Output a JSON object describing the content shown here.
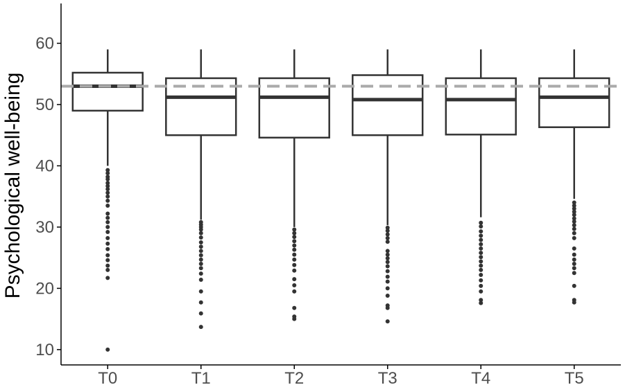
{
  "chart_data": {
    "type": "box",
    "xlabel": "",
    "ylabel": "Psychological well-being",
    "ylim": [
      7.5,
      66.5
    ],
    "yticks": [
      10,
      20,
      30,
      40,
      50,
      60
    ],
    "grid": false,
    "reference_line": {
      "y": 53,
      "style": "dashed",
      "color": "#aaaaaa"
    },
    "categories": [
      "T0",
      "T1",
      "T2",
      "T3",
      "T4",
      "T5"
    ],
    "boxes": [
      {
        "category": "T0",
        "whisker_low": 40,
        "q1": 49,
        "median": 53,
        "q3": 55.2,
        "whisker_high": 59,
        "outliers": [
          39.3,
          38.8,
          38.2,
          37.8,
          37.2,
          36.7,
          36.2,
          35.6,
          35.0,
          34.3,
          33.5,
          32.2,
          31.5,
          30.8,
          30.0,
          29.2,
          28.2,
          27.3,
          26.4,
          25.4,
          24.6,
          23.7,
          23.0,
          21.7,
          10.0
        ]
      },
      {
        "category": "T1",
        "whisker_low": 31.2,
        "q1": 45,
        "median": 51.2,
        "q3": 54.3,
        "whisker_high": 59,
        "outliers": [
          30.8,
          30.4,
          30.0,
          29.6,
          29.0,
          28.3,
          27.5,
          26.8,
          26.1,
          25.4,
          24.7,
          24.0,
          23.3,
          22.4,
          21.4,
          19.5,
          17.7,
          15.9,
          13.7
        ]
      },
      {
        "category": "T2",
        "whisker_low": 30.0,
        "q1": 44.6,
        "median": 51.2,
        "q3": 54.3,
        "whisker_high": 59,
        "outliers": [
          29.6,
          29.0,
          28.4,
          27.7,
          27.0,
          26.3,
          25.5,
          24.7,
          23.8,
          22.9,
          21.5,
          20.5,
          19.5,
          16.8,
          15.4,
          15.0
        ]
      },
      {
        "category": "T3",
        "whisker_low": 30.3,
        "q1": 45,
        "median": 50.8,
        "q3": 54.8,
        "whisker_high": 59,
        "outliers": [
          29.9,
          29.4,
          28.8,
          28.2,
          27.6,
          26.1,
          25.5,
          24.9,
          24.3,
          23.6,
          22.8,
          21.9,
          21.1,
          20.0,
          18.8,
          17.2,
          16.8,
          14.6
        ]
      },
      {
        "category": "T4",
        "whisker_low": 31.6,
        "q1": 45.1,
        "median": 50.8,
        "q3": 54.3,
        "whisker_high": 59,
        "outliers": [
          30.7,
          30.1,
          29.3,
          28.6,
          27.9,
          27.2,
          26.5,
          25.8,
          25.1,
          24.4,
          23.7,
          23.0,
          22.2,
          21.3,
          20.4,
          19.5,
          18.1,
          17.6
        ]
      },
      {
        "category": "T5",
        "whisker_low": 34.6,
        "q1": 46.3,
        "median": 51.2,
        "q3": 54.3,
        "whisker_high": 59,
        "outliers": [
          34.0,
          33.5,
          33.0,
          32.5,
          32.0,
          31.4,
          30.9,
          30.3,
          29.7,
          29.0,
          28.2,
          26.5,
          25.5,
          24.7,
          24.0,
          23.3,
          22.5,
          20.4,
          18.1,
          17.7
        ]
      }
    ],
    "colors": {
      "box_line": "#333333",
      "median_line": "#333333",
      "outlier": "#333333",
      "reference_line": "#aaaaaa",
      "axis": "#000000"
    }
  }
}
